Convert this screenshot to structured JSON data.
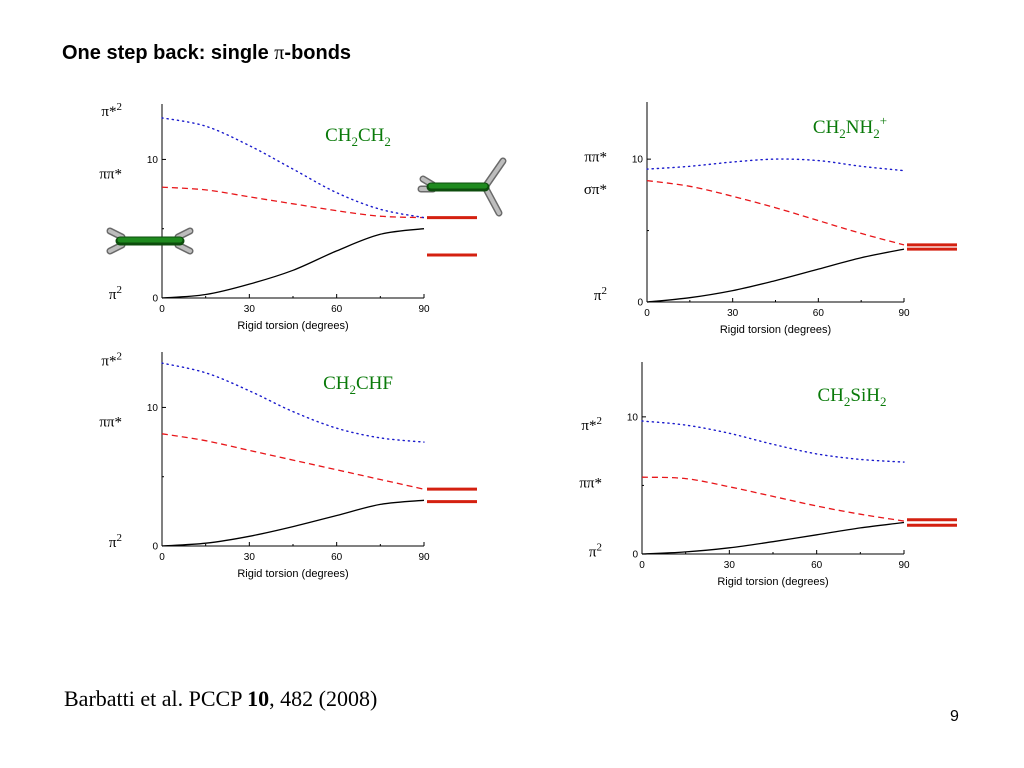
{
  "slide": {
    "title_prefix": "One step back: single ",
    "title_pi": "π",
    "title_suffix": "-bonds",
    "citation_prefix": "Barbatti et al. PCCP ",
    "citation_volume": "10",
    "citation_suffix": ", 482 (2008)",
    "page_number": "9"
  },
  "colors": {
    "pi2": "#000000",
    "pipi_star": "#e8161a",
    "pi_star2": "#1a1acc",
    "molecule_label": "#0a7a0a",
    "level_bar": "#d42010"
  },
  "chart_data": [
    {
      "type": "line",
      "title": "CH2CH2",
      "title_parts": [
        "CH",
        "2",
        "CH",
        "2"
      ],
      "xlabel": "Rigid torsion (degrees)",
      "xlim": [
        0,
        90
      ],
      "ylim": [
        0,
        14
      ],
      "xticks": [
        0,
        30,
        60,
        90
      ],
      "yticks": [
        0,
        10
      ],
      "state_labels": [
        {
          "text": "π*2",
          "main": "π*",
          "sup": "2",
          "y": 13.5
        },
        {
          "text": "ππ*",
          "main": "ππ*",
          "sup": "",
          "y": 9.0
        },
        {
          "text": "π2",
          "main": "π",
          "sup": "2",
          "y": 0.3
        }
      ],
      "series": [
        {
          "key": "pi2",
          "style": "solid",
          "x": [
            0,
            15,
            30,
            45,
            60,
            75,
            90
          ],
          "y": [
            0,
            0.25,
            1.0,
            2.0,
            3.4,
            4.6,
            5.0
          ]
        },
        {
          "key": "pipi_star",
          "style": "dashed",
          "x": [
            0,
            15,
            30,
            45,
            60,
            75,
            90
          ],
          "y": [
            8.0,
            7.8,
            7.3,
            6.8,
            6.3,
            5.9,
            5.8
          ]
        },
        {
          "key": "pi_star2",
          "style": "dotted",
          "x": [
            0,
            15,
            30,
            45,
            60,
            75,
            90
          ],
          "y": [
            13.0,
            12.4,
            11.0,
            9.3,
            7.6,
            6.4,
            5.8
          ]
        }
      ],
      "levels": [
        5.8,
        3.1
      ],
      "molecules": [
        {
          "kind": "planar",
          "pos": "left"
        },
        {
          "kind": "twisted",
          "pos": "right"
        }
      ]
    },
    {
      "type": "line",
      "title": "CH2NH2+",
      "title_parts": [
        "CH",
        "2",
        "NH",
        "2",
        "+"
      ],
      "xlabel": "Rigid torsion (degrees)",
      "xlim": [
        0,
        90
      ],
      "ylim": [
        0,
        14
      ],
      "xticks": [
        0,
        30,
        60,
        90
      ],
      "yticks": [
        0,
        10
      ],
      "state_labels": [
        {
          "text": "ππ*",
          "main": "ππ*",
          "sup": "",
          "y": 10.2
        },
        {
          "text": "σπ*",
          "main": "σπ*",
          "sup": "",
          "y": 7.9
        },
        {
          "text": "π2",
          "main": "π",
          "sup": "2",
          "y": 0.5
        }
      ],
      "series": [
        {
          "key": "pi2",
          "style": "solid",
          "x": [
            0,
            15,
            30,
            45,
            60,
            75,
            90
          ],
          "y": [
            0,
            0.3,
            0.8,
            1.5,
            2.3,
            3.1,
            3.7
          ]
        },
        {
          "key": "pipi_star",
          "style": "dashed",
          "x": [
            0,
            15,
            30,
            45,
            60,
            75,
            90
          ],
          "y": [
            8.5,
            8.1,
            7.4,
            6.6,
            5.7,
            4.8,
            4.0
          ]
        },
        {
          "key": "pi_star2",
          "style": "dotted",
          "x": [
            0,
            15,
            30,
            45,
            60,
            75,
            90
          ],
          "y": [
            9.3,
            9.5,
            9.8,
            10.0,
            9.9,
            9.5,
            9.2
          ]
        }
      ],
      "levels": [
        4.0,
        3.7
      ],
      "molecules": []
    },
    {
      "type": "line",
      "title": "CH2CHF",
      "title_parts": [
        "CH",
        "2",
        "CHF",
        ""
      ],
      "xlabel": "Rigid torsion (degrees)",
      "xlim": [
        0,
        90
      ],
      "ylim": [
        0,
        14
      ],
      "xticks": [
        0,
        30,
        60,
        90
      ],
      "yticks": [
        0,
        10
      ],
      "state_labels": [
        {
          "text": "π*2",
          "main": "π*",
          "sup": "2",
          "y": 13.4
        },
        {
          "text": "ππ*",
          "main": "ππ*",
          "sup": "",
          "y": 9.0
        },
        {
          "text": "π2",
          "main": "π",
          "sup": "2",
          "y": 0.3
        }
      ],
      "series": [
        {
          "key": "pi2",
          "style": "solid",
          "x": [
            0,
            15,
            30,
            45,
            60,
            75,
            90
          ],
          "y": [
            0,
            0.2,
            0.7,
            1.4,
            2.2,
            3.0,
            3.3
          ]
        },
        {
          "key": "pipi_star",
          "style": "dashed",
          "x": [
            0,
            15,
            30,
            45,
            60,
            75,
            90
          ],
          "y": [
            8.1,
            7.6,
            6.9,
            6.2,
            5.5,
            4.8,
            4.1
          ]
        },
        {
          "key": "pi_star2",
          "style": "dotted",
          "x": [
            0,
            15,
            30,
            45,
            60,
            75,
            90
          ],
          "y": [
            13.2,
            12.5,
            11.2,
            9.7,
            8.5,
            7.8,
            7.5
          ]
        }
      ],
      "levels": [
        4.1,
        3.2
      ],
      "molecules": []
    },
    {
      "type": "line",
      "title": "CH2SiH2",
      "title_parts": [
        "CH",
        "2",
        "SiH",
        "2"
      ],
      "xlabel": "Rigid torsion (degrees)",
      "xlim": [
        0,
        90
      ],
      "ylim": [
        0,
        14
      ],
      "xticks": [
        0,
        30,
        60,
        90
      ],
      "yticks": [
        0,
        10
      ],
      "state_labels": [
        {
          "text": "π*2",
          "main": "π*",
          "sup": "2",
          "y": 9.4
        },
        {
          "text": "ππ*",
          "main": "ππ*",
          "sup": "",
          "y": 5.2
        },
        {
          "text": "π2",
          "main": "π",
          "sup": "2",
          "y": 0.2
        }
      ],
      "series": [
        {
          "key": "pi2",
          "style": "solid",
          "x": [
            0,
            15,
            30,
            45,
            60,
            75,
            90
          ],
          "y": [
            0,
            0.15,
            0.45,
            0.9,
            1.4,
            1.9,
            2.3
          ]
        },
        {
          "key": "pipi_star",
          "style": "dashed",
          "x": [
            0,
            15,
            30,
            45,
            60,
            75,
            90
          ],
          "y": [
            5.6,
            5.5,
            4.9,
            4.2,
            3.5,
            2.9,
            2.4
          ]
        },
        {
          "key": "pi_star2",
          "style": "dotted",
          "x": [
            0,
            15,
            30,
            45,
            60,
            75,
            90
          ],
          "y": [
            9.7,
            9.4,
            8.8,
            8.0,
            7.3,
            6.9,
            6.7
          ]
        }
      ],
      "levels": [
        2.5,
        2.1
      ],
      "molecules": []
    }
  ]
}
